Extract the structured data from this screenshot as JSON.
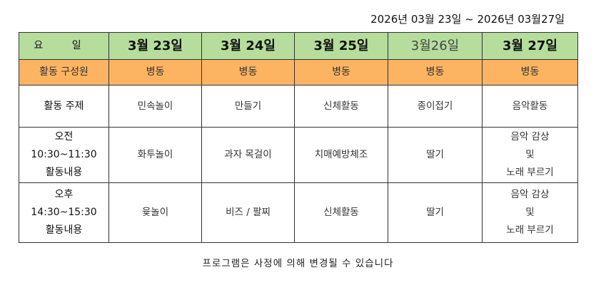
{
  "date_range": "2026년 03월 23일  ~ 2026년 03월27일",
  "header": {
    "label": "요 일",
    "days": [
      "3월 23일",
      "3월 24일",
      "3월 25일",
      "3월26일",
      "3월 27일"
    ]
  },
  "members": {
    "label": "활동 구성원",
    "values": [
      "병동",
      "병동",
      "병동",
      "병동",
      "병동"
    ]
  },
  "topic": {
    "label": "활동 주제",
    "values": [
      "민속놀이",
      "만들기",
      "신체활동",
      "종이접기",
      "음악활동"
    ]
  },
  "morning": {
    "label_lines": [
      "오전",
      "10:30~11:30",
      "활동내용"
    ],
    "values": [
      "화투놀이",
      "과자 목걸이",
      "치매예방체조",
      "딸기"
    ],
    "last_lines": [
      "음악 감상",
      "및",
      "노래 부르기"
    ]
  },
  "afternoon": {
    "label_lines": [
      "오후",
      "14:30~15:30",
      "활동내용"
    ],
    "values": [
      "윷놀이",
      "비즈 / 팔찌",
      "신체활동",
      "딸기"
    ],
    "last_lines": [
      "음악 감상",
      "및",
      "노래 부르기"
    ]
  },
  "note": "프로그램은 사정에 의해 변경될 수 있습니다"
}
